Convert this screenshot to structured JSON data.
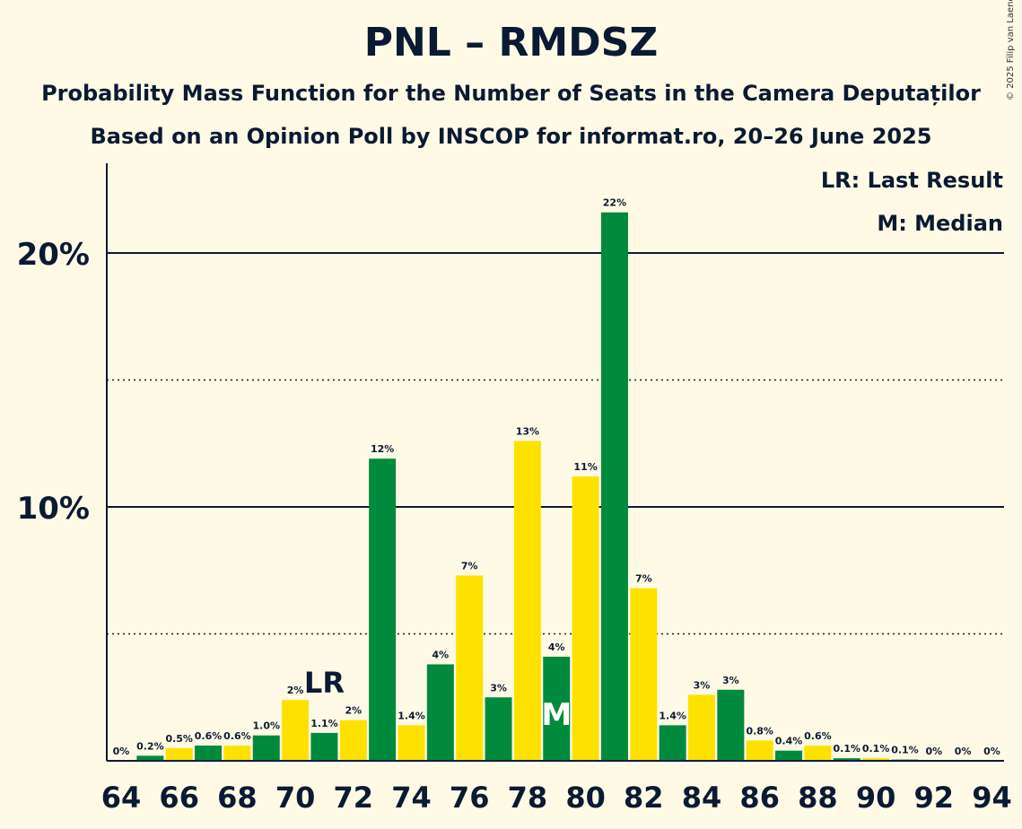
{
  "title": "PNL – RMDSZ",
  "subtitle": "Probability Mass Function for the Number of Seats in the Camera Deputaților",
  "source": "Based on an Opinion Poll by INSCOP for informat.ro, 20–26 June 2025",
  "copyright": "© 2025 Filip van Laenen",
  "legend": {
    "last_result": "LR: Last Result",
    "median": "M: Median"
  },
  "markers": {
    "last_result_label": "LR",
    "median_label": "M"
  },
  "colors": {
    "green": "#008a3e",
    "yellow": "#ffe100",
    "background": "#fffae6",
    "text": "#0b1a33"
  },
  "chart_data": {
    "type": "bar",
    "x": [
      64,
      65,
      66,
      67,
      68,
      69,
      70,
      71,
      72,
      73,
      74,
      75,
      76,
      77,
      78,
      79,
      80,
      81,
      82,
      83,
      84,
      85,
      86,
      87,
      88,
      89,
      90,
      91,
      92,
      93,
      94
    ],
    "values": [
      0,
      0.2,
      0.5,
      0.6,
      0.6,
      1.0,
      2.4,
      1.1,
      1.6,
      11.9,
      1.4,
      3.8,
      7.3,
      2.5,
      12.6,
      4.1,
      11.2,
      21.6,
      6.8,
      1.4,
      2.6,
      2.8,
      0.8,
      0.4,
      0.6,
      0.1,
      0.1,
      0.05,
      0,
      0,
      0
    ],
    "labels": [
      "0%",
      "0.2%",
      "0.5%",
      "0.6%",
      "0.6%",
      "1.0%",
      "2%",
      "1.1%",
      "2%",
      "12%",
      "1.4%",
      "4%",
      "7%",
      "3%",
      "13%",
      "4%",
      "11%",
      "22%",
      "7%",
      "1.4%",
      "3%",
      "3%",
      "0.8%",
      "0.4%",
      "0.6%",
      "0.1%",
      "0.1%",
      "0.1%",
      "0%",
      "0%",
      "0%"
    ],
    "x_tick_labels": [
      "64",
      "66",
      "68",
      "70",
      "72",
      "74",
      "76",
      "78",
      "80",
      "82",
      "84",
      "86",
      "88",
      "90",
      "92",
      "94"
    ],
    "y_tick_labels": [
      "10%",
      "20%"
    ],
    "ylim": [
      0,
      23.5
    ],
    "last_result_x": 71,
    "median_x": 79,
    "solid_gridlines": [
      10,
      20
    ],
    "dotted_gridlines": [
      5,
      15
    ]
  }
}
